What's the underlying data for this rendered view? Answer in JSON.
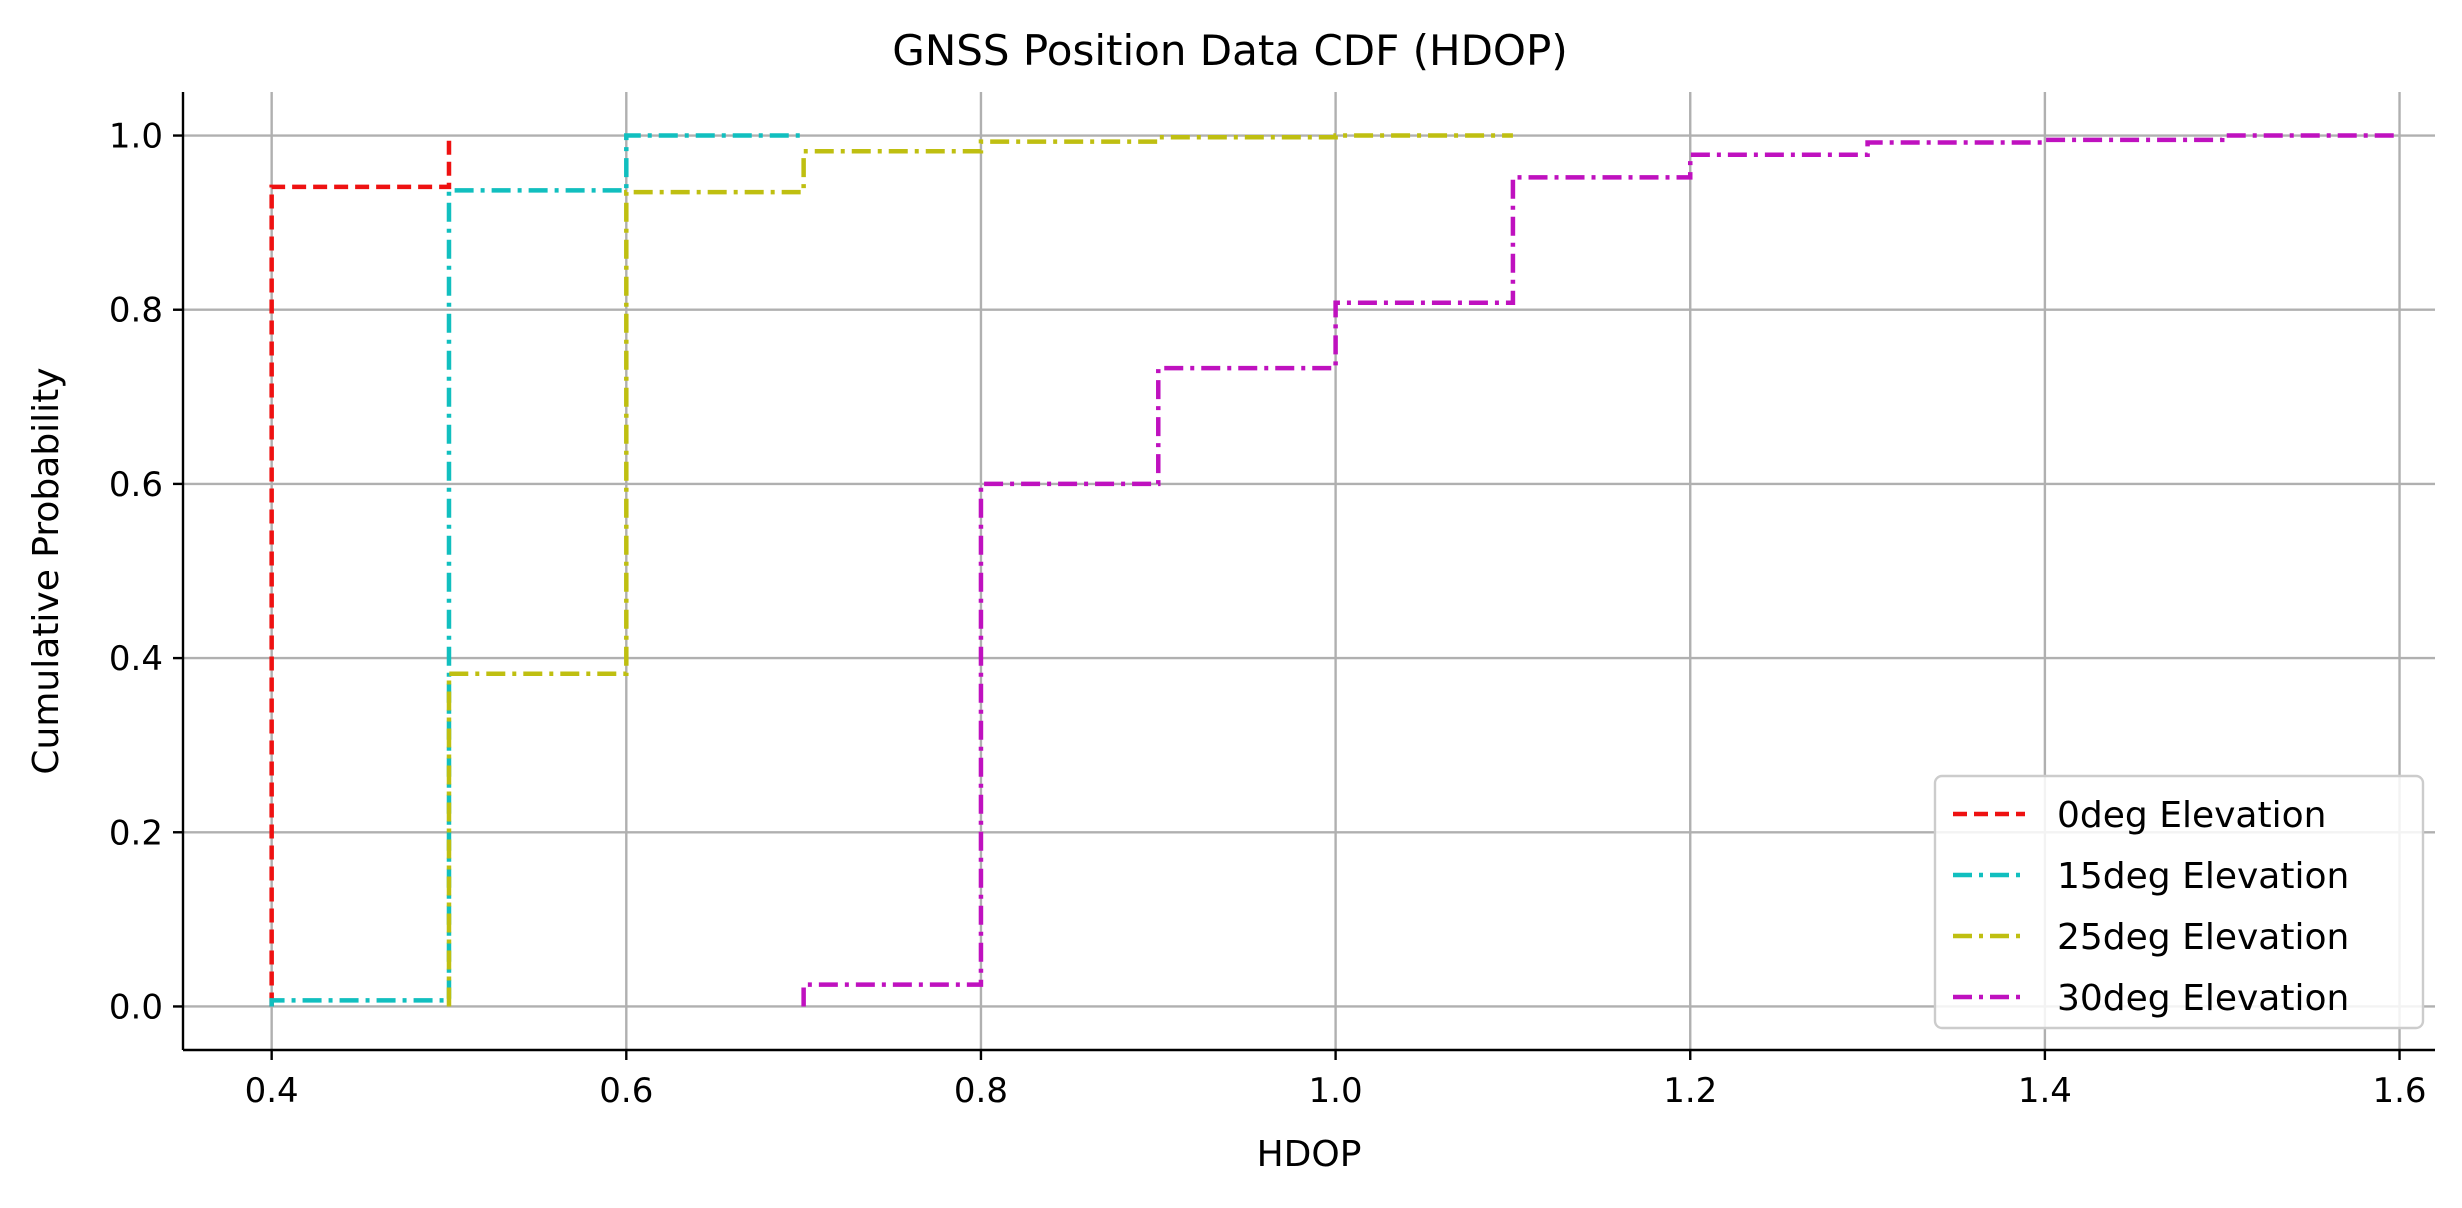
{
  "chart_data": {
    "type": "line",
    "title": "GNSS Position Data CDF (HDOP)",
    "xlabel": "HDOP",
    "ylabel": "Cumulative Probability",
    "xlim": [
      0.35,
      1.62
    ],
    "ylim": [
      -0.05,
      1.05
    ],
    "xticks": [
      0.4,
      0.6,
      0.8,
      1.0,
      1.2,
      1.4,
      1.6
    ],
    "xtick_labels": [
      "0.4",
      "0.6",
      "0.8",
      "1.0",
      "1.2",
      "1.4",
      "1.6"
    ],
    "yticks": [
      0.0,
      0.2,
      0.4,
      0.6,
      0.8,
      1.0
    ],
    "ytick_labels": [
      "0.0",
      "0.2",
      "0.4",
      "0.6",
      "0.8",
      "1.0"
    ],
    "grid": true,
    "legend_position": "lower-right",
    "step": "post",
    "series": [
      {
        "name": "0deg Elevation",
        "color": "#ee1111",
        "dash": "dashed",
        "x": [
          0.4,
          0.4,
          0.5,
          0.5
        ],
        "y": [
          0.0,
          0.941,
          0.941,
          1.0
        ]
      },
      {
        "name": "15deg Elevation",
        "color": "#11bfbf",
        "dash": "dashdot",
        "x": [
          0.4,
          0.4,
          0.5,
          0.6,
          0.7
        ],
        "y": [
          0.0,
          0.007,
          0.937,
          1.0,
          1.0
        ]
      },
      {
        "name": "25deg Elevation",
        "color": "#bfbf11",
        "dash": "dashdot",
        "x": [
          0.5,
          0.5,
          0.6,
          0.7,
          0.8,
          0.9,
          1.0,
          1.1
        ],
        "y": [
          0.0,
          0.382,
          0.935,
          0.982,
          0.993,
          0.998,
          1.0,
          1.0
        ]
      },
      {
        "name": "30deg Elevation",
        "color": "#bf11bf",
        "dash": "dashdot",
        "x": [
          0.7,
          0.7,
          0.8,
          0.9,
          1.0,
          1.1,
          1.2,
          1.3,
          1.4,
          1.5,
          1.6
        ],
        "y": [
          0.0,
          0.025,
          0.6,
          0.733,
          0.808,
          0.952,
          0.978,
          0.992,
          0.995,
          1.0,
          1.0
        ]
      }
    ]
  }
}
